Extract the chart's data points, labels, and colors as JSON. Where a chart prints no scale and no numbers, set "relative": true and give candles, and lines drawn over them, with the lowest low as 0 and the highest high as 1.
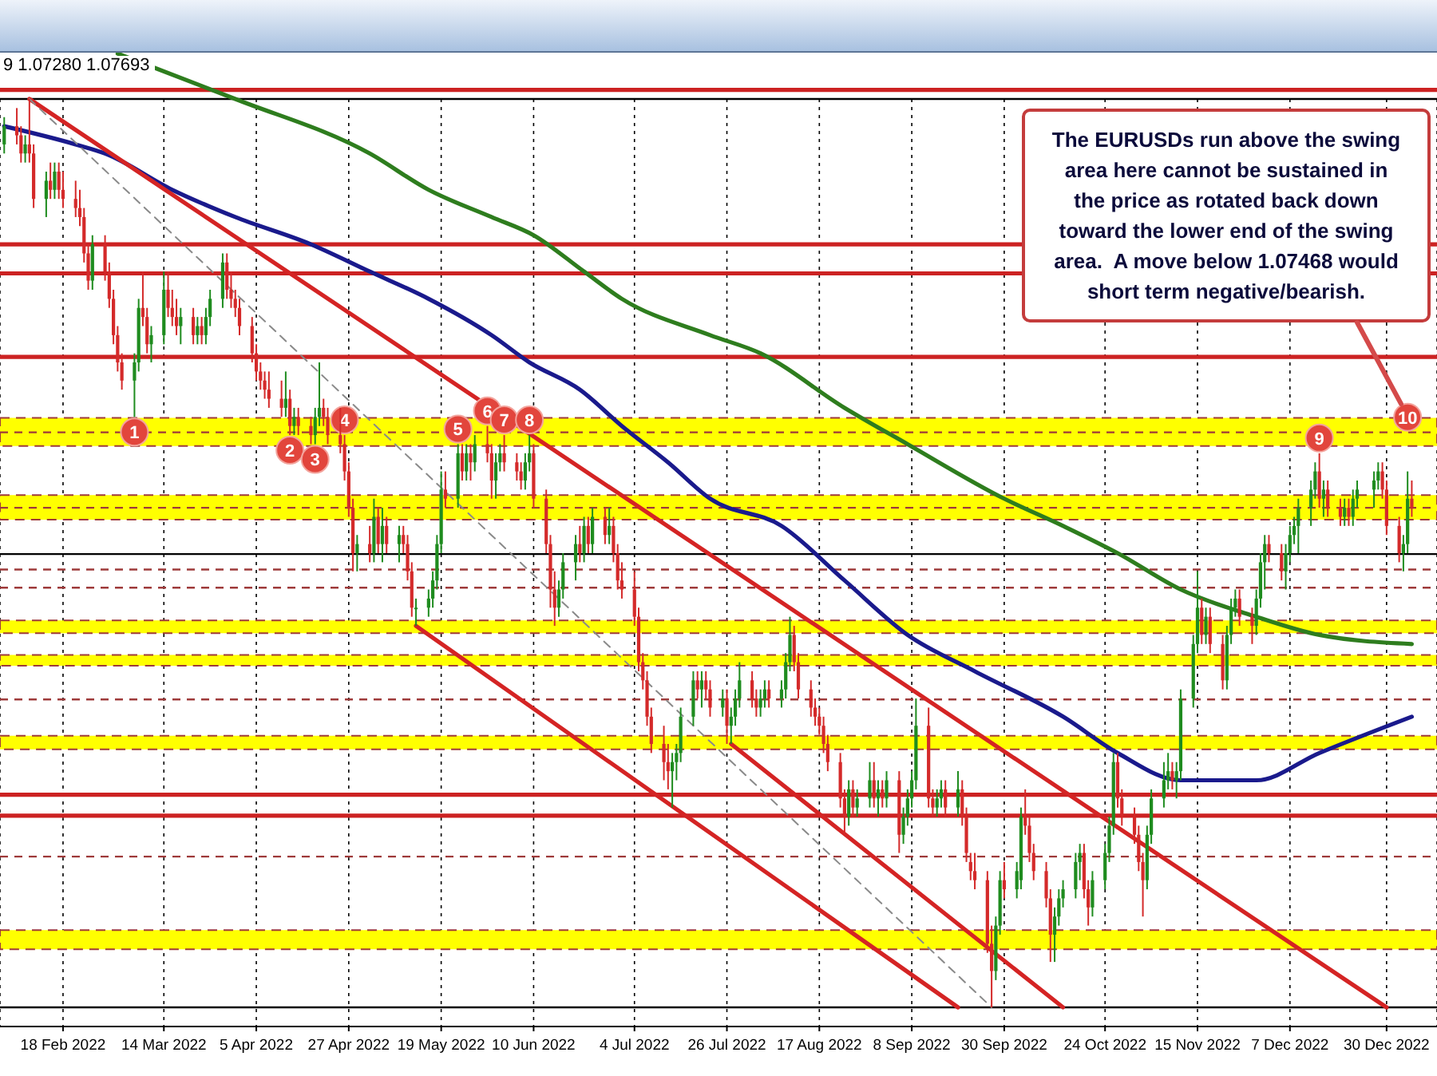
{
  "chart_data": {
    "type": "candlestick",
    "title": "9 1.07280 1.07693",
    "relative": true,
    "x": [
      "2022-02-04",
      "2022-02-07",
      "2022-02-08",
      "2022-02-09",
      "2022-02-10",
      "2022-02-11",
      "2022-02-14",
      "2022-02-15",
      "2022-02-16",
      "2022-02-17",
      "2022-02-18",
      "2022-02-21",
      "2022-02-22",
      "2022-02-23",
      "2022-02-24",
      "2022-02-25",
      "2022-02-28",
      "2022-03-01",
      "2022-03-02",
      "2022-03-03",
      "2022-03-04",
      "2022-03-07",
      "2022-03-08",
      "2022-03-09",
      "2022-03-10",
      "2022-03-11",
      "2022-03-14",
      "2022-03-15",
      "2022-03-16",
      "2022-03-17",
      "2022-03-18",
      "2022-03-21",
      "2022-03-22",
      "2022-03-23",
      "2022-03-24",
      "2022-03-25",
      "2022-03-28",
      "2022-03-29",
      "2022-03-30",
      "2022-03-31",
      "2022-04-01",
      "2022-04-04",
      "2022-04-05",
      "2022-04-06",
      "2022-04-07",
      "2022-04-08",
      "2022-04-11",
      "2022-04-12",
      "2022-04-13",
      "2022-04-14",
      "2022-04-15",
      "2022-04-18",
      "2022-04-19",
      "2022-04-20",
      "2022-04-21",
      "2022-04-22",
      "2022-04-25",
      "2022-04-26",
      "2022-04-27",
      "2022-04-28",
      "2022-04-29",
      "2022-05-02",
      "2022-05-03",
      "2022-05-04",
      "2022-05-05",
      "2022-05-06",
      "2022-05-09",
      "2022-05-10",
      "2022-05-11",
      "2022-05-12",
      "2022-05-13",
      "2022-05-16",
      "2022-05-17",
      "2022-05-18",
      "2022-05-19",
      "2022-05-20",
      "2022-05-23",
      "2022-05-24",
      "2022-05-25",
      "2022-05-26",
      "2022-05-27",
      "2022-05-30",
      "2022-05-31",
      "2022-06-01",
      "2022-06-02",
      "2022-06-03",
      "2022-06-06",
      "2022-06-07",
      "2022-06-08",
      "2022-06-09",
      "2022-06-10",
      "2022-06-13",
      "2022-06-14",
      "2022-06-15",
      "2022-06-16",
      "2022-06-17",
      "2022-06-20",
      "2022-06-21",
      "2022-06-22",
      "2022-06-23",
      "2022-06-24",
      "2022-06-27",
      "2022-06-28",
      "2022-06-29",
      "2022-06-30",
      "2022-07-01",
      "2022-07-04",
      "2022-07-05",
      "2022-07-06",
      "2022-07-07",
      "2022-07-08",
      "2022-07-11",
      "2022-07-12",
      "2022-07-13",
      "2022-07-14",
      "2022-07-15",
      "2022-07-18",
      "2022-07-19",
      "2022-07-20",
      "2022-07-21",
      "2022-07-22",
      "2022-07-25",
      "2022-07-26",
      "2022-07-27",
      "2022-07-28",
      "2022-07-29",
      "2022-08-01",
      "2022-08-02",
      "2022-08-03",
      "2022-08-04",
      "2022-08-05",
      "2022-08-08",
      "2022-08-09",
      "2022-08-10",
      "2022-08-11",
      "2022-08-12",
      "2022-08-15",
      "2022-08-16",
      "2022-08-17",
      "2022-08-18",
      "2022-08-19",
      "2022-08-22",
      "2022-08-23",
      "2022-08-24",
      "2022-08-25",
      "2022-08-26",
      "2022-08-29",
      "2022-08-30",
      "2022-08-31",
      "2022-09-01",
      "2022-09-02",
      "2022-09-05",
      "2022-09-06",
      "2022-09-07",
      "2022-09-08",
      "2022-09-09",
      "2022-09-12",
      "2022-09-13",
      "2022-09-14",
      "2022-09-15",
      "2022-09-16",
      "2022-09-19",
      "2022-09-20",
      "2022-09-21",
      "2022-09-22",
      "2022-09-23",
      "2022-09-26",
      "2022-09-27",
      "2022-09-28",
      "2022-09-29",
      "2022-09-30",
      "2022-10-03",
      "2022-10-04",
      "2022-10-05",
      "2022-10-06",
      "2022-10-07",
      "2022-10-10",
      "2022-10-11",
      "2022-10-12",
      "2022-10-13",
      "2022-10-14",
      "2022-10-17",
      "2022-10-18",
      "2022-10-19",
      "2022-10-20",
      "2022-10-21",
      "2022-10-24",
      "2022-10-25",
      "2022-10-26",
      "2022-10-27",
      "2022-10-28",
      "2022-10-31",
      "2022-11-01",
      "2022-11-02",
      "2022-11-03",
      "2022-11-04",
      "2022-11-07",
      "2022-11-08",
      "2022-11-09",
      "2022-11-10",
      "2022-11-11",
      "2022-11-14",
      "2022-11-15",
      "2022-11-16",
      "2022-11-17",
      "2022-11-18",
      "2022-11-21",
      "2022-11-22",
      "2022-11-23",
      "2022-11-24",
      "2022-11-25",
      "2022-11-28",
      "2022-11-29",
      "2022-11-30",
      "2022-12-01",
      "2022-12-02",
      "2022-12-05",
      "2022-12-06",
      "2022-12-07",
      "2022-12-08",
      "2022-12-09",
      "2022-12-12",
      "2022-12-13",
      "2022-12-14",
      "2022-12-15",
      "2022-12-16",
      "2022-12-19",
      "2022-12-20",
      "2022-12-21",
      "2022-12-22",
      "2022-12-23",
      "2022-12-27",
      "2022-12-28",
      "2022-12-29",
      "2022-12-30",
      "2023-01-02",
      "2023-01-03",
      "2023-01-04",
      "2023-01-05"
    ],
    "ohlc": [
      [
        0.95,
        0.98,
        0.94,
        0.97
      ],
      [
        0.97,
        0.99,
        0.95,
        0.96
      ],
      [
        0.96,
        0.97,
        0.93,
        0.94
      ],
      [
        0.94,
        0.96,
        0.93,
        0.95
      ],
      [
        0.95,
        1.0,
        0.93,
        0.94
      ],
      [
        0.94,
        0.95,
        0.88,
        0.89
      ],
      [
        0.89,
        0.92,
        0.87,
        0.91
      ],
      [
        0.91,
        0.93,
        0.89,
        0.9
      ],
      [
        0.9,
        0.93,
        0.89,
        0.92
      ],
      [
        0.92,
        0.93,
        0.89,
        0.9
      ],
      [
        0.9,
        0.92,
        0.88,
        0.89
      ],
      [
        0.89,
        0.91,
        0.87,
        0.88
      ],
      [
        0.88,
        0.9,
        0.86,
        0.87
      ],
      [
        0.87,
        0.88,
        0.82,
        0.83
      ],
      [
        0.83,
        0.84,
        0.79,
        0.8
      ],
      [
        0.8,
        0.85,
        0.79,
        0.84
      ],
      [
        0.84,
        0.85,
        0.8,
        0.81
      ],
      [
        0.81,
        0.82,
        0.77,
        0.78
      ],
      [
        0.78,
        0.79,
        0.73,
        0.74
      ],
      [
        0.74,
        0.75,
        0.7,
        0.71
      ],
      [
        0.71,
        0.72,
        0.68,
        0.69
      ],
      [
        0.69,
        0.72,
        0.65,
        0.71
      ],
      [
        0.71,
        0.78,
        0.7,
        0.77
      ],
      [
        0.77,
        0.81,
        0.75,
        0.76
      ],
      [
        0.76,
        0.77,
        0.72,
        0.73
      ],
      [
        0.73,
        0.75,
        0.71,
        0.74
      ],
      [
        0.74,
        0.81,
        0.73,
        0.79
      ],
      [
        0.79,
        0.81,
        0.76,
        0.77
      ],
      [
        0.77,
        0.79,
        0.75,
        0.76
      ],
      [
        0.76,
        0.78,
        0.74,
        0.75
      ],
      [
        0.75,
        0.77,
        0.73,
        0.76
      ],
      [
        0.76,
        0.77,
        0.73,
        0.74
      ],
      [
        0.74,
        0.76,
        0.73,
        0.75
      ],
      [
        0.75,
        0.76,
        0.73,
        0.74
      ],
      [
        0.74,
        0.77,
        0.73,
        0.76
      ],
      [
        0.76,
        0.79,
        0.75,
        0.78
      ],
      [
        0.78,
        0.83,
        0.77,
        0.82
      ],
      [
        0.82,
        0.83,
        0.78,
        0.79
      ],
      [
        0.79,
        0.81,
        0.77,
        0.78
      ],
      [
        0.78,
        0.79,
        0.76,
        0.77
      ],
      [
        0.77,
        0.78,
        0.74,
        0.75
      ],
      [
        0.75,
        0.76,
        0.71,
        0.72
      ],
      [
        0.72,
        0.73,
        0.69,
        0.7
      ],
      [
        0.7,
        0.71,
        0.68,
        0.69
      ],
      [
        0.69,
        0.7,
        0.67,
        0.68
      ],
      [
        0.68,
        0.7,
        0.66,
        0.67
      ],
      [
        0.67,
        0.69,
        0.65,
        0.66
      ],
      [
        0.66,
        0.7,
        0.65,
        0.67
      ],
      [
        0.67,
        0.68,
        0.63,
        0.64
      ],
      [
        0.64,
        0.66,
        0.63,
        0.65
      ],
      [
        0.65,
        0.66,
        0.63,
        0.64
      ],
      [
        0.64,
        0.65,
        0.62,
        0.63
      ],
      [
        0.63,
        0.66,
        0.62,
        0.65
      ],
      [
        0.65,
        0.71,
        0.64,
        0.66
      ],
      [
        0.66,
        0.67,
        0.64,
        0.65
      ],
      [
        0.65,
        0.66,
        0.62,
        0.63
      ],
      [
        0.63,
        0.66,
        0.61,
        0.62
      ],
      [
        0.62,
        0.63,
        0.58,
        0.59
      ],
      [
        0.59,
        0.6,
        0.54,
        0.55
      ],
      [
        0.55,
        0.56,
        0.48,
        0.5
      ],
      [
        0.5,
        0.52,
        0.48,
        0.51
      ],
      [
        0.51,
        0.53,
        0.49,
        0.5
      ],
      [
        0.5,
        0.56,
        0.49,
        0.54
      ],
      [
        0.54,
        0.55,
        0.5,
        0.51
      ],
      [
        0.51,
        0.55,
        0.49,
        0.53
      ],
      [
        0.53,
        0.54,
        0.5,
        0.51
      ],
      [
        0.51,
        0.53,
        0.49,
        0.52
      ],
      [
        0.52,
        0.53,
        0.5,
        0.51
      ],
      [
        0.51,
        0.52,
        0.47,
        0.48
      ],
      [
        0.48,
        0.49,
        0.43,
        0.44
      ],
      [
        0.44,
        0.45,
        0.42,
        0.44
      ],
      [
        0.44,
        0.46,
        0.43,
        0.45
      ],
      [
        0.45,
        0.48,
        0.44,
        0.47
      ],
      [
        0.47,
        0.52,
        0.46,
        0.51
      ],
      [
        0.51,
        0.59,
        0.5,
        0.57
      ],
      [
        0.57,
        0.59,
        0.55,
        0.56
      ],
      [
        0.56,
        0.62,
        0.55,
        0.61
      ],
      [
        0.61,
        0.62,
        0.58,
        0.59
      ],
      [
        0.59,
        0.62,
        0.58,
        0.61
      ],
      [
        0.61,
        0.62,
        0.58,
        0.6
      ],
      [
        0.6,
        0.63,
        0.59,
        0.62
      ],
      [
        0.62,
        0.64,
        0.6,
        0.61
      ],
      [
        0.61,
        0.62,
        0.56,
        0.58
      ],
      [
        0.58,
        0.61,
        0.56,
        0.6
      ],
      [
        0.6,
        0.62,
        0.59,
        0.61
      ],
      [
        0.61,
        0.63,
        0.59,
        0.6
      ],
      [
        0.6,
        0.61,
        0.58,
        0.59
      ],
      [
        0.59,
        0.6,
        0.57,
        0.58
      ],
      [
        0.58,
        0.61,
        0.57,
        0.6
      ],
      [
        0.6,
        0.63,
        0.59,
        0.61
      ],
      [
        0.61,
        0.62,
        0.55,
        0.56
      ],
      [
        0.56,
        0.57,
        0.5,
        0.51
      ],
      [
        0.51,
        0.52,
        0.44,
        0.46
      ],
      [
        0.46,
        0.48,
        0.42,
        0.44
      ],
      [
        0.44,
        0.47,
        0.43,
        0.46
      ],
      [
        0.46,
        0.5,
        0.45,
        0.49
      ],
      [
        0.49,
        0.52,
        0.47,
        0.51
      ],
      [
        0.51,
        0.53,
        0.49,
        0.5
      ],
      [
        0.5,
        0.54,
        0.49,
        0.53
      ],
      [
        0.53,
        0.54,
        0.5,
        0.51
      ],
      [
        0.51,
        0.55,
        0.5,
        0.54
      ],
      [
        0.54,
        0.55,
        0.51,
        0.52
      ],
      [
        0.52,
        0.55,
        0.51,
        0.53
      ],
      [
        0.53,
        0.54,
        0.49,
        0.5
      ],
      [
        0.5,
        0.51,
        0.46,
        0.47
      ],
      [
        0.47,
        0.49,
        0.45,
        0.46
      ],
      [
        0.46,
        0.48,
        0.42,
        0.43
      ],
      [
        0.43,
        0.44,
        0.37,
        0.38
      ],
      [
        0.38,
        0.39,
        0.35,
        0.36
      ],
      [
        0.36,
        0.37,
        0.31,
        0.32
      ],
      [
        0.32,
        0.33,
        0.28,
        0.29
      ],
      [
        0.29,
        0.31,
        0.25,
        0.27
      ],
      [
        0.27,
        0.29,
        0.24,
        0.26
      ],
      [
        0.26,
        0.28,
        0.22,
        0.27
      ],
      [
        0.27,
        0.29,
        0.25,
        0.28
      ],
      [
        0.28,
        0.33,
        0.27,
        0.32
      ],
      [
        0.32,
        0.37,
        0.31,
        0.36
      ],
      [
        0.36,
        0.37,
        0.34,
        0.35
      ],
      [
        0.35,
        0.37,
        0.33,
        0.36
      ],
      [
        0.36,
        0.37,
        0.34,
        0.35
      ],
      [
        0.35,
        0.36,
        0.32,
        0.33
      ],
      [
        0.33,
        0.35,
        0.32,
        0.34
      ],
      [
        0.34,
        0.35,
        0.29,
        0.31
      ],
      [
        0.31,
        0.33,
        0.29,
        0.32
      ],
      [
        0.32,
        0.35,
        0.31,
        0.34
      ],
      [
        0.34,
        0.38,
        0.33,
        0.36
      ],
      [
        0.36,
        0.37,
        0.33,
        0.34
      ],
      [
        0.34,
        0.35,
        0.32,
        0.33
      ],
      [
        0.33,
        0.35,
        0.32,
        0.34
      ],
      [
        0.34,
        0.36,
        0.33,
        0.35
      ],
      [
        0.35,
        0.36,
        0.33,
        0.34
      ],
      [
        0.34,
        0.36,
        0.33,
        0.35
      ],
      [
        0.35,
        0.39,
        0.34,
        0.38
      ],
      [
        0.38,
        0.43,
        0.37,
        0.41
      ],
      [
        0.41,
        0.42,
        0.37,
        0.38
      ],
      [
        0.38,
        0.39,
        0.34,
        0.35
      ],
      [
        0.35,
        0.36,
        0.32,
        0.33
      ],
      [
        0.33,
        0.34,
        0.31,
        0.32
      ],
      [
        0.32,
        0.33,
        0.3,
        0.31
      ],
      [
        0.31,
        0.32,
        0.28,
        0.29
      ],
      [
        0.29,
        0.3,
        0.26,
        0.27
      ],
      [
        0.27,
        0.28,
        0.22,
        0.23
      ],
      [
        0.23,
        0.24,
        0.19,
        0.21
      ],
      [
        0.21,
        0.25,
        0.2,
        0.24
      ],
      [
        0.24,
        0.25,
        0.21,
        0.22
      ],
      [
        0.22,
        0.24,
        0.21,
        0.23
      ],
      [
        0.23,
        0.27,
        0.22,
        0.25
      ],
      [
        0.25,
        0.27,
        0.22,
        0.23
      ],
      [
        0.23,
        0.25,
        0.21,
        0.24
      ],
      [
        0.24,
        0.25,
        0.22,
        0.23
      ],
      [
        0.23,
        0.26,
        0.22,
        0.25
      ],
      [
        0.25,
        0.26,
        0.17,
        0.19
      ],
      [
        0.19,
        0.22,
        0.18,
        0.21
      ],
      [
        0.21,
        0.24,
        0.2,
        0.23
      ],
      [
        0.23,
        0.26,
        0.22,
        0.25
      ],
      [
        0.25,
        0.34,
        0.24,
        0.31
      ],
      [
        0.31,
        0.33,
        0.22,
        0.23
      ],
      [
        0.23,
        0.24,
        0.21,
        0.22
      ],
      [
        0.22,
        0.24,
        0.21,
        0.23
      ],
      [
        0.23,
        0.25,
        0.22,
        0.24
      ],
      [
        0.24,
        0.25,
        0.21,
        0.22
      ],
      [
        0.22,
        0.26,
        0.21,
        0.24
      ],
      [
        0.24,
        0.25,
        0.2,
        0.21
      ],
      [
        0.21,
        0.22,
        0.16,
        0.17
      ],
      [
        0.16,
        0.17,
        0.14,
        0.15
      ],
      [
        0.15,
        0.17,
        0.13,
        0.14
      ],
      [
        0.14,
        0.15,
        0.06,
        0.07
      ],
      [
        0.07,
        0.09,
        0.0,
        0.04
      ],
      [
        0.04,
        0.1,
        0.03,
        0.09
      ],
      [
        0.09,
        0.15,
        0.08,
        0.14
      ],
      [
        0.14,
        0.16,
        0.12,
        0.13
      ],
      [
        0.13,
        0.16,
        0.12,
        0.15
      ],
      [
        0.14,
        0.22,
        0.13,
        0.21
      ],
      [
        0.21,
        0.24,
        0.19,
        0.2
      ],
      [
        0.2,
        0.21,
        0.16,
        0.17
      ],
      [
        0.17,
        0.18,
        0.14,
        0.15
      ],
      [
        0.15,
        0.16,
        0.11,
        0.12
      ],
      [
        0.12,
        0.13,
        0.05,
        0.08
      ],
      [
        0.08,
        0.11,
        0.05,
        0.1
      ],
      [
        0.1,
        0.13,
        0.09,
        0.12
      ],
      [
        0.12,
        0.14,
        0.11,
        0.13
      ],
      [
        0.13,
        0.17,
        0.12,
        0.16
      ],
      [
        0.16,
        0.18,
        0.14,
        0.17
      ],
      [
        0.17,
        0.18,
        0.12,
        0.13
      ],
      [
        0.13,
        0.14,
        0.09,
        0.11
      ],
      [
        0.11,
        0.15,
        0.1,
        0.14
      ],
      [
        0.14,
        0.18,
        0.13,
        0.17
      ],
      [
        0.17,
        0.21,
        0.16,
        0.2
      ],
      [
        0.2,
        0.28,
        0.19,
        0.27
      ],
      [
        0.27,
        0.28,
        0.22,
        0.23
      ],
      [
        0.23,
        0.24,
        0.2,
        0.21
      ],
      [
        0.21,
        0.22,
        0.18,
        0.19
      ],
      [
        0.19,
        0.2,
        0.15,
        0.16
      ],
      [
        0.16,
        0.17,
        0.1,
        0.14
      ],
      [
        0.14,
        0.2,
        0.13,
        0.19
      ],
      [
        0.19,
        0.24,
        0.18,
        0.23
      ],
      [
        0.23,
        0.27,
        0.22,
        0.25
      ],
      [
        0.25,
        0.28,
        0.24,
        0.26
      ],
      [
        0.26,
        0.27,
        0.24,
        0.25
      ],
      [
        0.25,
        0.27,
        0.23,
        0.26
      ],
      [
        0.26,
        0.35,
        0.25,
        0.34
      ],
      [
        0.34,
        0.41,
        0.33,
        0.4
      ],
      [
        0.4,
        0.48,
        0.39,
        0.44
      ],
      [
        0.44,
        0.45,
        0.4,
        0.41
      ],
      [
        0.41,
        0.44,
        0.4,
        0.43
      ],
      [
        0.43,
        0.44,
        0.39,
        0.4
      ],
      [
        0.4,
        0.41,
        0.35,
        0.36
      ],
      [
        0.36,
        0.42,
        0.35,
        0.41
      ],
      [
        0.41,
        0.45,
        0.4,
        0.44
      ],
      [
        0.44,
        0.46,
        0.43,
        0.45
      ],
      [
        0.45,
        0.46,
        0.42,
        0.43
      ],
      [
        0.43,
        0.44,
        0.4,
        0.42
      ],
      [
        0.42,
        0.46,
        0.41,
        0.45
      ],
      [
        0.45,
        0.5,
        0.44,
        0.49
      ],
      [
        0.49,
        0.52,
        0.46,
        0.51
      ],
      [
        0.51,
        0.52,
        0.49,
        0.5
      ],
      [
        0.5,
        0.51,
        0.47,
        0.48
      ],
      [
        0.48,
        0.51,
        0.46,
        0.5
      ],
      [
        0.5,
        0.53,
        0.49,
        0.52
      ],
      [
        0.52,
        0.54,
        0.51,
        0.53
      ],
      [
        0.53,
        0.56,
        0.5,
        0.55
      ],
      [
        0.55,
        0.58,
        0.53,
        0.57
      ],
      [
        0.57,
        0.6,
        0.56,
        0.59
      ],
      [
        0.59,
        0.61,
        0.55,
        0.56
      ],
      [
        0.56,
        0.58,
        0.54,
        0.57
      ],
      [
        0.57,
        0.58,
        0.54,
        0.55
      ],
      [
        0.55,
        0.56,
        0.53,
        0.54
      ],
      [
        0.54,
        0.56,
        0.53,
        0.55
      ],
      [
        0.55,
        0.56,
        0.53,
        0.54
      ],
      [
        0.54,
        0.57,
        0.53,
        0.56
      ],
      [
        0.56,
        0.58,
        0.55,
        0.57
      ],
      [
        0.57,
        0.59,
        0.55,
        0.58
      ],
      [
        0.58,
        0.6,
        0.57,
        0.59
      ],
      [
        0.59,
        0.6,
        0.56,
        0.57
      ],
      [
        0.57,
        0.58,
        0.52,
        0.53
      ],
      [
        0.53,
        0.54,
        0.49,
        0.5
      ],
      [
        0.5,
        0.52,
        0.48,
        0.51
      ],
      [
        0.51,
        0.59,
        0.5,
        0.56
      ],
      [
        0.56,
        0.58,
        0.54,
        0.55
      ]
    ],
    "colors": [
      "#1f8c1f",
      "#d42a2a",
      "#d42a2a",
      "#1f8c1f",
      "#d42a2a",
      "#d42a2a",
      "#1f8c1f",
      "#d42a2a",
      "#1f8c1f",
      "#d42a2a",
      "#d42a2a",
      "#d42a2a",
      "#d42a2a",
      "#d42a2a",
      "#d42a2a",
      "#1f8c1f",
      "#d42a2a",
      "#d42a2a",
      "#d42a2a",
      "#d42a2a",
      "#d42a2a",
      "#1f8c1f",
      "#1f8c1f",
      "#d42a2a",
      "#d42a2a",
      "#1f8c1f",
      "#1f8c1f",
      "#d42a2a",
      "#d42a2a",
      "#d42a2a",
      "#1f8c1f",
      "#d42a2a",
      "#1f8c1f",
      "#d42a2a",
      "#1f8c1f",
      "#1f8c1f",
      "#1f8c1f",
      "#d42a2a",
      "#d42a2a",
      "#d42a2a",
      "#d42a2a",
      "#d42a2a",
      "#d42a2a",
      "#d42a2a",
      "#d42a2a",
      "#d42a2a",
      "#d42a2a",
      "#1f8c1f",
      "#d42a2a",
      "#1f8c1f",
      "#d42a2a",
      "#d42a2a",
      "#1f8c1f",
      "#1f8c1f",
      "#d42a2a",
      "#d42a2a",
      "#d42a2a",
      "#d42a2a",
      "#d42a2a",
      "#d42a2a",
      "#1f8c1f",
      "#d42a2a",
      "#1f8c1f",
      "#d42a2a",
      "#1f8c1f",
      "#d42a2a",
      "#1f8c1f",
      "#d42a2a",
      "#d42a2a",
      "#d42a2a",
      "#1f8c1f",
      "#1f8c1f",
      "#1f8c1f",
      "#1f8c1f",
      "#1f8c1f",
      "#d42a2a",
      "#1f8c1f",
      "#d42a2a",
      "#1f8c1f",
      "#d42a2a",
      "#1f8c1f",
      "#d42a2a",
      "#d42a2a",
      "#1f8c1f",
      "#1f8c1f",
      "#d42a2a",
      "#d42a2a",
      "#d42a2a",
      "#1f8c1f",
      "#1f8c1f",
      "#d42a2a",
      "#d42a2a",
      "#d42a2a",
      "#d42a2a",
      "#1f8c1f",
      "#1f8c1f",
      "#1f8c1f",
      "#d42a2a",
      "#1f8c1f",
      "#d42a2a",
      "#1f8c1f",
      "#d42a2a",
      "#1f8c1f",
      "#d42a2a",
      "#d42a2a",
      "#d42a2a",
      "#d42a2a",
      "#d42a2a",
      "#d42a2a",
      "#d42a2a",
      "#d42a2a",
      "#d42a2a",
      "#d42a2a",
      "#1f8c1f",
      "#1f8c1f",
      "#1f8c1f",
      "#1f8c1f",
      "#d42a2a",
      "#1f8c1f",
      "#d42a2a",
      "#d42a2a",
      "#1f8c1f",
      "#d42a2a",
      "#1f8c1f",
      "#1f8c1f",
      "#1f8c1f",
      "#d42a2a",
      "#d42a2a",
      "#1f8c1f",
      "#1f8c1f",
      "#d42a2a",
      "#1f8c1f",
      "#1f8c1f",
      "#1f8c1f",
      "#d42a2a",
      "#d42a2a",
      "#d42a2a",
      "#d42a2a",
      "#d42a2a",
      "#d42a2a",
      "#d42a2a",
      "#d42a2a",
      "#d42a2a",
      "#1f8c1f",
      "#d42a2a",
      "#1f8c1f",
      "#1f8c1f",
      "#d42a2a",
      "#1f8c1f",
      "#d42a2a",
      "#1f8c1f",
      "#d42a2a",
      "#1f8c1f",
      "#1f8c1f",
      "#1f8c1f",
      "#1f8c1f",
      "#d42a2a",
      "#d42a2a",
      "#1f8c1f",
      "#1f8c1f",
      "#d42a2a",
      "#1f8c1f",
      "#d42a2a",
      "#d42a2a",
      "#d42a2a",
      "#d42a2a",
      "#d42a2a",
      "#d42a2a",
      "#1f8c1f",
      "#1f8c1f",
      "#d42a2a",
      "#1f8c1f",
      "#1f8c1f",
      "#d42a2a",
      "#d42a2a",
      "#d42a2a",
      "#d42a2a",
      "#d42a2a",
      "#1f8c1f",
      "#1f8c1f",
      "#1f8c1f",
      "#1f8c1f",
      "#1f8c1f",
      "#d42a2a",
      "#d42a2a",
      "#1f8c1f",
      "#1f8c1f",
      "#1f8c1f",
      "#1f8c1f",
      "#d42a2a",
      "#d42a2a",
      "#d42a2a",
      "#d42a2a",
      "#d42a2a",
      "#1f8c1f",
      "#1f8c1f",
      "#1f8c1f",
      "#1f8c1f",
      "#d42a2a",
      "#1f8c1f",
      "#1f8c1f",
      "#1f8c1f",
      "#1f8c1f",
      "#d42a2a",
      "#1f8c1f",
      "#d42a2a",
      "#d42a2a",
      "#1f8c1f",
      "#1f8c1f",
      "#1f8c1f",
      "#d42a2a",
      "#d42a2a",
      "#1f8c1f",
      "#1f8c1f",
      "#1f8c1f",
      "#d42a2a",
      "#d42a2a",
      "#1f8c1f",
      "#1f8c1f",
      "#1f8c1f",
      "#1f8c1f",
      "#1f8c1f",
      "#1f8c1f",
      "#d42a2a",
      "#1f8c1f",
      "#d42a2a",
      "#d42a2a",
      "#1f8c1f",
      "#d42a2a",
      "#1f8c1f",
      "#1f8c1f",
      "#1f8c1f",
      "#1f8c1f",
      "#d42a2a",
      "#d42a2a",
      "#d42a2a",
      "#1f8c1f",
      "#1f8c1f",
      "#d42a2a"
    ],
    "series": [
      {
        "type": "line",
        "color": "#1a1a8c",
        "x": [
          "2022-02-04",
          "2022-02-21",
          "2022-02-28",
          "2022-03-16",
          "2022-03-31",
          "2022-04-18",
          "2022-05-02",
          "2022-05-16",
          "2022-05-31",
          "2022-06-09",
          "2022-06-21",
          "2022-07-01",
          "2022-07-12",
          "2022-07-22",
          "2022-08-08",
          "2022-08-23",
          "2022-09-07",
          "2022-09-23",
          "2022-10-14",
          "2022-10-27",
          "2022-11-11",
          "2022-11-21",
          "2022-11-29",
          "2022-12-14",
          "2023-01-05"
        ],
        "values": [
          0.97,
          0.95,
          0.94,
          0.9,
          0.87,
          0.84,
          0.81,
          0.78,
          0.74,
          0.71,
          0.68,
          0.64,
          0.6,
          0.56,
          0.53,
          0.47,
          0.41,
          0.37,
          0.32,
          0.28,
          0.25,
          0.25,
          0.25,
          0.28,
          0.32
        ]
      },
      {
        "type": "line",
        "color": "#2e7d1e",
        "x": [
          "2022-03-03",
          "2022-03-31",
          "2022-05-02",
          "2022-05-16",
          "2022-05-31",
          "2022-06-10",
          "2022-06-22",
          "2022-07-01",
          "2022-07-22",
          "2022-08-03",
          "2022-08-23",
          "2022-09-07",
          "2022-09-30",
          "2022-10-14",
          "2022-10-27",
          "2022-11-11",
          "2022-11-29",
          "2022-12-14",
          "2023-01-05"
        ],
        "values": [
          1.05,
          1.0,
          0.94,
          0.9,
          0.87,
          0.85,
          0.81,
          0.78,
          0.74,
          0.72,
          0.66,
          0.62,
          0.56,
          0.53,
          0.5,
          0.46,
          0.43,
          0.41,
          0.4
        ]
      },
      {
        "type": "line",
        "color": "#d42424",
        "x": [
          "2022-02-10",
          "2022-12-30"
        ],
        "values": [
          1.0,
          0.0
        ]
      },
      {
        "type": "line",
        "color": "#d42424",
        "x": [
          "2022-05-13",
          "2022-09-19"
        ],
        "values": [
          0.42,
          0.0
        ]
      },
      {
        "type": "line",
        "color": "#d42424",
        "x": [
          "2022-07-27",
          "2022-10-14"
        ],
        "values": [
          0.29,
          0.0
        ]
      },
      {
        "type": "line",
        "color": "#8a8a8a",
        "line_style": "dashed",
        "x": [
          "2022-02-10",
          "2022-09-27"
        ],
        "values": [
          1.0,
          0.0
        ]
      }
    ],
    "xlim": [
      "2022-02-03",
      "2023-01-11"
    ],
    "xticks": [
      {
        "value": "2022-02-18",
        "label": "18 Feb 2022"
      },
      {
        "value": "2022-03-14",
        "label": "14 Mar 2022"
      },
      {
        "value": "2022-04-05",
        "label": "5 Apr 2022"
      },
      {
        "value": "2022-04-27",
        "label": "27 Apr 2022"
      },
      {
        "value": "2022-05-19",
        "label": "19 May 2022"
      },
      {
        "value": "2022-06-10",
        "label": "10 Jun 2022"
      },
      {
        "value": "2022-07-04",
        "label": "4 Jul 2022"
      },
      {
        "value": "2022-07-26",
        "label": "26 Jul 2022"
      },
      {
        "value": "2022-08-17",
        "label": "17 Aug 2022"
      },
      {
        "value": "2022-09-08",
        "label": "8 Sep 2022"
      },
      {
        "value": "2022-09-30",
        "label": "30 Sep 2022"
      },
      {
        "value": "2022-10-24",
        "label": "24 Oct 2022"
      },
      {
        "value": "2022-11-15",
        "label": "15 Nov 2022"
      },
      {
        "value": "2022-12-07",
        "label": "7 Dec 2022"
      },
      {
        "value": "2022-12-30",
        "label": "30 Dec 2022"
      }
    ],
    "grid": "x",
    "ref_lines": [
      {
        "axis": "y",
        "value": 1.01,
        "color": "#cc2222",
        "line_style": "solid"
      },
      {
        "axis": "y",
        "value": 1.0,
        "color": "#000000",
        "line_style": "solid"
      },
      {
        "axis": "y",
        "value": 0.84,
        "color": "#cc2222",
        "line_style": "solid"
      },
      {
        "axis": "y",
        "value": 0.808,
        "color": "#cc2222",
        "line_style": "solid"
      },
      {
        "axis": "y",
        "value": 0.716,
        "color": "#cc2222",
        "line_style": "solid"
      },
      {
        "axis": "y",
        "value": 0.633,
        "color": "#9e3a3a",
        "line_style": "dashed"
      },
      {
        "axis": "y",
        "value": 0.55,
        "color": "#9e3a3a",
        "line_style": "dashed"
      },
      {
        "axis": "y",
        "value": 0.499,
        "color": "#000000",
        "line_style": "solid"
      },
      {
        "axis": "y",
        "value": 0.482,
        "color": "#9e3a3a",
        "line_style": "dashed"
      },
      {
        "axis": "y",
        "value": 0.462,
        "color": "#9e3a3a",
        "line_style": "dashed"
      },
      {
        "axis": "y",
        "value": 0.339,
        "color": "#9e3a3a",
        "line_style": "dashed"
      },
      {
        "axis": "y",
        "value": 0.234,
        "color": "#cc2222",
        "line_style": "solid"
      },
      {
        "axis": "y",
        "value": 0.211,
        "color": "#cc2222",
        "line_style": "solid"
      },
      {
        "axis": "y",
        "value": 0.166,
        "color": "#9e3a3a",
        "line_style": "dashed"
      },
      {
        "axis": "y",
        "value": 0.0,
        "color": "#000000",
        "line_style": "solid"
      }
    ],
    "bands": [
      {
        "axis": "y",
        "from": 0.618,
        "to": 0.649,
        "color": "#ffff00"
      },
      {
        "axis": "y",
        "from": 0.537,
        "to": 0.564,
        "color": "#ffff00"
      },
      {
        "axis": "y",
        "from": 0.412,
        "to": 0.426,
        "color": "#ffff00"
      },
      {
        "axis": "y",
        "from": 0.376,
        "to": 0.388,
        "color": "#ffff00"
      },
      {
        "axis": "y",
        "from": 0.284,
        "to": 0.299,
        "color": "#ffff00"
      },
      {
        "axis": "y",
        "from": 0.064,
        "to": 0.085,
        "color": "#ffff00"
      }
    ],
    "annotations": [
      "The EURUSDs run above the swing\narea here cannot be sustained in\nthe price as rotated back down\ntoward the lower end of the swing\narea.  A move below 1.07468 would\nshort term negative/bearish.",
      {
        "text": "1",
        "x": "2022-03-07",
        "y": 0.65
      },
      {
        "text": "2",
        "x": "2022-04-13",
        "y": 0.63
      },
      {
        "text": "3",
        "x": "2022-04-19",
        "y": 0.62
      },
      {
        "text": "4",
        "x": "2022-04-26",
        "y": 0.63
      },
      {
        "text": "5",
        "x": "2022-05-23",
        "y": 0.62
      },
      {
        "text": "6",
        "x": "2022-05-30",
        "y": 0.64
      },
      {
        "text": "7",
        "x": "2022-06-03",
        "y": 0.63
      },
      {
        "text": "8",
        "x": "2022-06-09",
        "y": 0.63
      },
      {
        "text": "9",
        "x": "2022-12-14",
        "y": 0.61
      },
      {
        "text": "10",
        "x": "2023-01-04",
        "y": 0.633
      }
    ]
  }
}
